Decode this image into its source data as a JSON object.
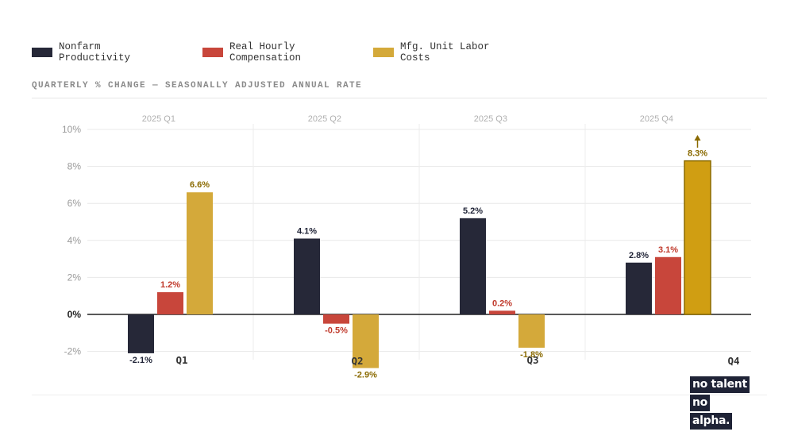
{
  "legend": [
    {
      "label": "Nonfarm Productivity",
      "color": "#262838"
    },
    {
      "label": "Real Hourly Compensation",
      "color": "#c8463b"
    },
    {
      "label": "Mfg. Unit Labor Costs",
      "color": "#d4a93a"
    }
  ],
  "subtitle": "QUARTERLY % CHANGE — SEASONALLY ADJUSTED ANNUAL RATE",
  "logo": [
    "no talent",
    "no",
    "alpha."
  ],
  "chart_data": {
    "type": "bar",
    "categories": [
      "Q1",
      "Q2",
      "Q3",
      "Q4"
    ],
    "period_labels": [
      "2025 Q1",
      "2025 Q2",
      "2025 Q3",
      "2025 Q4"
    ],
    "series": [
      {
        "name": "Nonfarm Productivity",
        "values": [
          -2.1,
          4.1,
          5.2,
          2.8
        ],
        "color": "#262838",
        "label_color": "#1f2336"
      },
      {
        "name": "Real Hourly Compensation",
        "values": [
          1.2,
          -0.5,
          0.2,
          3.1
        ],
        "color": "#c8463b",
        "label_color": "#c0392b"
      },
      {
        "name": "Mfg. Unit Labor Costs",
        "values": [
          6.6,
          -2.9,
          -1.8,
          8.3
        ],
        "color": "#d4a93a",
        "label_color": "#8a6a00"
      }
    ],
    "data_labels": [
      [
        "-2.1%",
        "4.1%",
        "5.2%",
        "2.8%"
      ],
      [
        "1.2%",
        "-0.5%",
        "0.2%",
        "3.1%"
      ],
      [
        "6.6%",
        "-2.9%",
        "-1.8%",
        "8.3%"
      ]
    ],
    "highlight": {
      "category_index": 3,
      "series_index": 2,
      "color": "#d09e12",
      "arrow": true
    },
    "y_ticks": [
      "10%",
      "8%",
      "6%",
      "4%",
      "2%",
      "0%",
      "-2%"
    ],
    "y_tick_values": [
      10,
      8,
      6,
      4,
      2,
      0,
      -2
    ],
    "ylim": [
      -2.5,
      10
    ],
    "grid": true,
    "legend_position": "top-left"
  }
}
